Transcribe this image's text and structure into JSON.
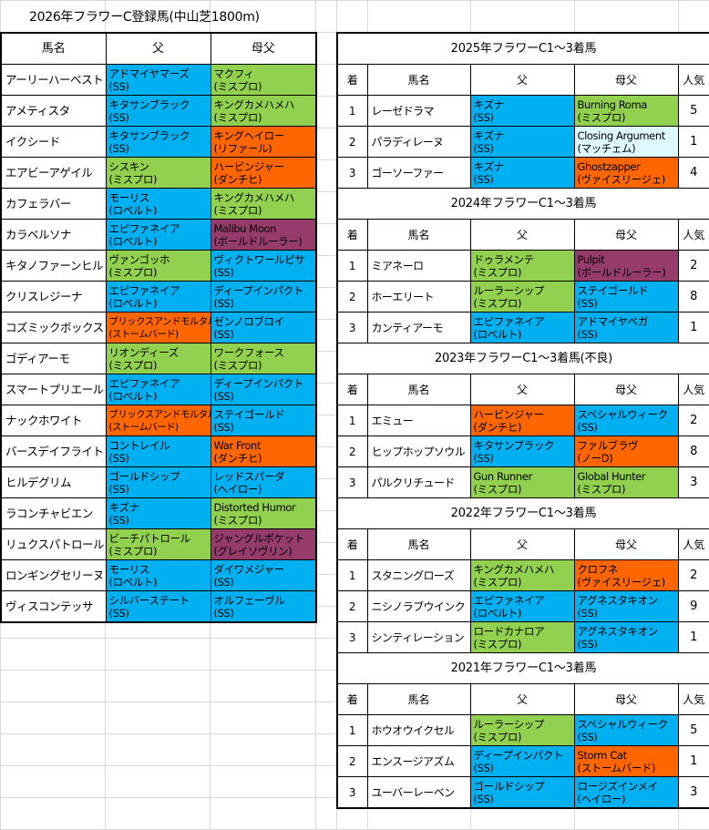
{
  "title": "2026年フラワーC登録馬(中山芝1800m)",
  "colors": {
    "ss": "#00b0f0",
    "mr": "#92d050",
    "ns": "#ff6600",
    "other": "#963c6c",
    "ltcyan": "#ddf8ff"
  },
  "left_headers": [
    "馬名",
    "父",
    "母父"
  ],
  "left_rows": [
    {
      "name": "アーリーハーベスト",
      "sire": "アドマイヤマーズ",
      "sire_line": "(SS)",
      "sc": "ss",
      "dam_sire": "マクフィ",
      "ds_line": "(ミスプロ)",
      "dc": "mr"
    },
    {
      "name": "アメティスタ",
      "sire": "キタサンブラック",
      "sire_line": "(SS)",
      "sc": "ss",
      "dam_sire": "キングカメハメハ",
      "ds_line": "(ミスプロ)",
      "dc": "mr"
    },
    {
      "name": "イクシード",
      "sire": "キタサンブラック",
      "sire_line": "(SS)",
      "sc": "ss",
      "dam_sire": "キングヘイロー",
      "ds_line": "(リファール)",
      "dc": "ns"
    },
    {
      "name": "エアビーアゲイル",
      "sire": "シスキン",
      "sire_line": "(ミスプロ)",
      "sc": "mr",
      "dam_sire": "ハービンジャー",
      "ds_line": "(ダンチヒ)",
      "dc": "ns"
    },
    {
      "name": "カフェラバー",
      "sire": "モーリス",
      "sire_line": "(ロベルト)",
      "sc": "ss",
      "dam_sire": "キングカメハメハ",
      "ds_line": "(ミスプロ)",
      "dc": "mr"
    },
    {
      "name": "カラベルソナ",
      "sire": "エピファネイア",
      "sire_line": "(ロベルト)",
      "sc": "ss",
      "dam_sire": "Malibu Moon",
      "ds_line": "(ボールドルーラー)",
      "dc": "other"
    },
    {
      "name": "キタノファーンヒル",
      "sire": "ヴァンゴッホ",
      "sire_line": "(ミスプロ)",
      "sc": "mr",
      "dam_sire": "ヴィクトワールピサ",
      "ds_line": "(SS)",
      "dc": "ss"
    },
    {
      "name": "クリスレジーナ",
      "sire": "エピファネイア",
      "sire_line": "(ロベルト)",
      "sc": "ss",
      "dam_sire": "ディープインパクト",
      "ds_line": "(SS)",
      "dc": "ss"
    },
    {
      "name": "コズミックボックス",
      "sire": "ブリックスアンドモルタル",
      "sire_line": "(ストームバード)",
      "sc": "ns",
      "dam_sire": "ゼンノロブロイ",
      "ds_line": "(SS)",
      "dc": "ss",
      "ssmall": true
    },
    {
      "name": "ゴディアーモ",
      "sire": "リオンディーズ",
      "sire_line": "(ミスプロ)",
      "sc": "mr",
      "dam_sire": "ワークフォース",
      "ds_line": "(ミスプロ)",
      "dc": "mr"
    },
    {
      "name": "スマートプリエール",
      "sire": "エピファネイア",
      "sire_line": "(ロベルト)",
      "sc": "ss",
      "dam_sire": "ディープインパクト",
      "ds_line": "(SS)",
      "dc": "ss"
    },
    {
      "name": "ナックホワイト",
      "sire": "ブリックスアンドモルタル",
      "sire_line": "(ストームバード)",
      "sc": "ns",
      "dam_sire": "ステイゴールド",
      "ds_line": "(SS)",
      "dc": "ss",
      "ssmall": true
    },
    {
      "name": "バースデイフライト",
      "sire": "コントレイル",
      "sire_line": "(SS)",
      "sc": "ss",
      "dam_sire": "War Front",
      "ds_line": "(ダンチヒ)",
      "dc": "ns"
    },
    {
      "name": "ヒルデグリム",
      "sire": "ゴールドシップ",
      "sire_line": "(SS)",
      "sc": "ss",
      "dam_sire": "レッドスパーダ",
      "ds_line": "(ヘイロー)",
      "dc": "ss"
    },
    {
      "name": "ラコンチャビエン",
      "sire": "キズナ",
      "sire_line": "(SS)",
      "sc": "ss",
      "dam_sire": "Distorted Humor",
      "ds_line": "(ミスプロ)",
      "dc": "mr"
    },
    {
      "name": "リュクスパトロール",
      "sire": "ビーチパトロール",
      "sire_line": "(ミスプロ)",
      "sc": "mr",
      "dam_sire": "ジャングルポケット",
      "ds_line": "(グレイソヴリン)",
      "dc": "other"
    },
    {
      "name": "ロンギングセリーヌ",
      "sire": "モーリス",
      "sire_line": "(ロベルト)",
      "sc": "ss",
      "dam_sire": "ダイワメジャー",
      "ds_line": "(SS)",
      "dc": "ss"
    },
    {
      "name": "ヴィスコンテッサ",
      "sire": "シルバーステート",
      "sire_line": "(SS)",
      "sc": "ss",
      "dam_sire": "オルフェーヴル",
      "ds_line": "(SS)",
      "dc": "ss"
    }
  ],
  "right_headers": [
    "着",
    "馬名",
    "父",
    "母父",
    "人気"
  ],
  "sections": [
    {
      "title": "2025年フラワーC1～3着馬",
      "rows": [
        {
          "rank": "1",
          "name": "レーゼドラマ",
          "sire": "キズナ",
          "sire_line": "(SS)",
          "sc": "ss",
          "dam_sire": "Burning Roma",
          "ds_line": "(ミスプロ)",
          "dc": "mr",
          "pop": "5"
        },
        {
          "rank": "2",
          "name": "パラディレーヌ",
          "sire": "キズナ",
          "sire_line": "(SS)",
          "sc": "ss",
          "dam_sire": "Closing Argument",
          "ds_line": "(マッチェム)",
          "dc": "ltcyan",
          "pop": "1"
        },
        {
          "rank": "3",
          "name": "ゴーソーファー",
          "sire": "キズナ",
          "sire_line": "(SS)",
          "sc": "ss",
          "dam_sire": "Ghostzapper",
          "ds_line": "(ヴァイスリージェ)",
          "dc": "ns",
          "pop": "4"
        }
      ]
    },
    {
      "title": "2024年フラワーC1～3着馬",
      "rows": [
        {
          "rank": "1",
          "name": "ミアネーロ",
          "sire": "ドゥラメンテ",
          "sire_line": "(ミスプロ)",
          "sc": "mr",
          "dam_sire": "Pulpit",
          "ds_line": "(ボールドルーラー)",
          "dc": "other",
          "pop": "2"
        },
        {
          "rank": "2",
          "name": "ホーエリート",
          "sire": "ルーラーシップ",
          "sire_line": "(ミスプロ)",
          "sc": "mr",
          "dam_sire": "ステイゴールド",
          "ds_line": "(SS)",
          "dc": "ss",
          "pop": "8"
        },
        {
          "rank": "3",
          "name": "カンティアーモ",
          "sire": "エピファネイア",
          "sire_line": "(ロベルト)",
          "sc": "ss",
          "dam_sire": "アドマイヤベガ",
          "ds_line": "(SS)",
          "dc": "ss",
          "pop": "1"
        }
      ]
    },
    {
      "title": "2023年フラワーC1～3着馬(不良)",
      "rows": [
        {
          "rank": "1",
          "name": "エミュー",
          "sire": "ハービンジャー",
          "sire_line": "(ダンチヒ)",
          "sc": "ns",
          "dam_sire": "スペシャルウィーク",
          "ds_line": "(SS)",
          "dc": "ss",
          "pop": "2"
        },
        {
          "rank": "2",
          "name": "ヒップホップソウル",
          "sire": "キタサンブラック",
          "sire_line": "(SS)",
          "sc": "ss",
          "dam_sire": "ファルブラヴ",
          "ds_line": "(ノーD)",
          "dc": "ns",
          "pop": "8"
        },
        {
          "rank": "3",
          "name": "パルクリチュード",
          "sire": "Gun Runner",
          "sire_line": "(ミスプロ)",
          "sc": "mr",
          "dam_sire": "Global Hunter",
          "ds_line": "(ミスプロ)",
          "dc": "mr",
          "pop": "3"
        }
      ]
    },
    {
      "title": "2022年フラワーC1～3着馬",
      "rows": [
        {
          "rank": "1",
          "name": "スタニングローズ",
          "sire": "キングカメハメハ",
          "sire_line": "(ミスプロ)",
          "sc": "mr",
          "dam_sire": "クロフネ",
          "ds_line": "(ヴァイスリージェ)",
          "dc": "ns",
          "pop": "2"
        },
        {
          "rank": "2",
          "name": "ニシノラブウインク",
          "sire": "エピファネイア",
          "sire_line": "(ロベルト)",
          "sc": "ss",
          "dam_sire": "アグネスタキオン",
          "ds_line": "(SS)",
          "dc": "ss",
          "pop": "9"
        },
        {
          "rank": "3",
          "name": "シンティレーション",
          "sire": "ロードカナロア",
          "sire_line": "(ミスプロ)",
          "sc": "mr",
          "dam_sire": "アグネスタキオン",
          "ds_line": "(SS)",
          "dc": "ss",
          "pop": "1"
        }
      ]
    },
    {
      "title": "2021年フラワーC1～3着馬",
      "rows": [
        {
          "rank": "1",
          "name": "ホウオウイクセル",
          "sire": "ルーラーシップ",
          "sire_line": "(ミスプロ)",
          "sc": "mr",
          "dam_sire": "スペシャルウィーク",
          "ds_line": "(SS)",
          "dc": "ss",
          "pop": "5"
        },
        {
          "rank": "2",
          "name": "エンスージアズム",
          "sire": "ディープインパクト",
          "sire_line": "(SS)",
          "sc": "ss",
          "dam_sire": "Storm Cat",
          "ds_line": "(ストームバード)",
          "dc": "ns",
          "pop": "1"
        },
        {
          "rank": "3",
          "name": "ユーバーレーベン",
          "sire": "ゴールドシップ",
          "sire_line": "(SS)",
          "sc": "ss",
          "dam_sire": "ロージズインメイ",
          "ds_line": "(ヘイロー)",
          "dc": "ss",
          "pop": "3"
        }
      ]
    }
  ]
}
